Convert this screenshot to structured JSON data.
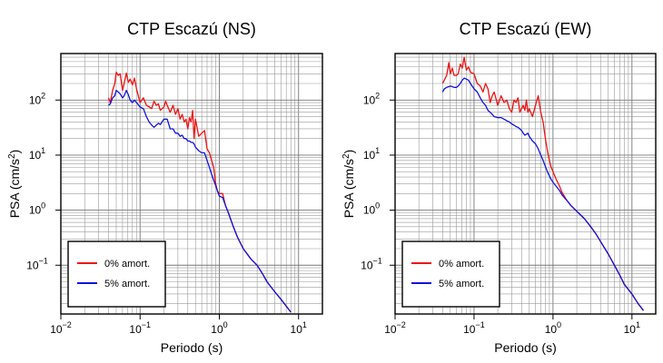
{
  "chart_data": [
    {
      "type": "line",
      "title": "CTP Escazú (NS)",
      "xlabel": "Periodo (s)",
      "ylabel_base": "PSA (cm/s",
      "ylabel_sup": "2",
      "ylabel_close": ")",
      "xscale": "log",
      "yscale": "log",
      "xlim": [
        0.01,
        20
      ],
      "ylim": [
        0.013,
        700
      ],
      "grid": true,
      "legend_position": "bottom-left",
      "x_ticks": [
        {
          "base": "10",
          "exp": "−2"
        },
        {
          "base": "10",
          "exp": "−1"
        },
        {
          "base": "10",
          "exp": "0"
        },
        {
          "base": "10",
          "exp": "1"
        }
      ],
      "y_ticks": [
        {
          "base": "10",
          "exp": "−1"
        },
        {
          "base": "10",
          "exp": "0"
        },
        {
          "base": "10",
          "exp": "1"
        },
        {
          "base": "10",
          "exp": "2"
        }
      ],
      "series": [
        {
          "name": "0% amort.",
          "color": "#ee1111",
          "x": [
            0.04,
            0.042,
            0.045,
            0.048,
            0.05,
            0.053,
            0.056,
            0.06,
            0.063,
            0.067,
            0.071,
            0.075,
            0.08,
            0.085,
            0.09,
            0.1,
            0.11,
            0.12,
            0.13,
            0.14,
            0.15,
            0.16,
            0.17,
            0.18,
            0.19,
            0.2,
            0.21,
            0.22,
            0.24,
            0.26,
            0.28,
            0.3,
            0.32,
            0.34,
            0.36,
            0.38,
            0.4,
            0.42,
            0.44,
            0.46,
            0.48,
            0.5,
            0.55,
            0.6,
            0.65,
            0.7,
            0.75,
            0.8,
            0.85,
            0.9,
            0.95,
            1.0,
            1.1,
            1.2,
            1.3,
            1.5,
            1.7,
            2.0,
            2.5,
            3.0,
            3.5,
            4.0,
            5.0,
            6.0,
            7.0,
            8.0
          ],
          "y": [
            110,
            90,
            150,
            200,
            320,
            280,
            300,
            150,
            200,
            310,
            210,
            240,
            190,
            250,
            160,
            90,
            110,
            80,
            75,
            70,
            95,
            80,
            85,
            65,
            70,
            75,
            95,
            80,
            60,
            80,
            55,
            70,
            45,
            55,
            40,
            45,
            30,
            48,
            40,
            65,
            20,
            45,
            22,
            25,
            28,
            13,
            11,
            8,
            6,
            3,
            2.2,
            2,
            2,
            1.2,
            0.9,
            0.5,
            0.32,
            0.2,
            0.13,
            0.1,
            0.07,
            0.05,
            0.033,
            0.024,
            0.018,
            0.014
          ]
        },
        {
          "name": "5% amort.",
          "color": "#1111dd",
          "x": [
            0.04,
            0.042,
            0.045,
            0.048,
            0.05,
            0.053,
            0.056,
            0.06,
            0.063,
            0.067,
            0.071,
            0.075,
            0.08,
            0.085,
            0.09,
            0.1,
            0.11,
            0.12,
            0.13,
            0.14,
            0.15,
            0.16,
            0.17,
            0.18,
            0.2,
            0.22,
            0.24,
            0.26,
            0.28,
            0.3,
            0.32,
            0.34,
            0.36,
            0.38,
            0.4,
            0.42,
            0.44,
            0.46,
            0.48,
            0.5,
            0.55,
            0.6,
            0.65,
            0.7,
            0.75,
            0.8,
            0.85,
            0.9,
            0.95,
            1.0,
            1.1,
            1.2,
            1.3,
            1.5,
            1.7,
            2.0,
            2.5,
            3.0,
            3.5,
            4.0,
            5.0,
            6.0,
            7.0,
            8.0
          ],
          "y": [
            80,
            85,
            110,
            120,
            150,
            140,
            130,
            110,
            120,
            150,
            125,
            100,
            90,
            100,
            90,
            75,
            70,
            50,
            40,
            35,
            32,
            35,
            38,
            36,
            45,
            45,
            30,
            30,
            25,
            25,
            22,
            23,
            20,
            20,
            18,
            18,
            17,
            17,
            16,
            14,
            12,
            11,
            11,
            8,
            6,
            4.5,
            3.5,
            2.8,
            2.2,
            1.8,
            1.7,
            1.2,
            0.9,
            0.5,
            0.32,
            0.2,
            0.13,
            0.1,
            0.07,
            0.05,
            0.033,
            0.024,
            0.018,
            0.014
          ]
        }
      ]
    },
    {
      "type": "line",
      "title": "CTP Escazú (EW)",
      "xlabel": "Periodo (s)",
      "ylabel_base": "PSA (cm/s",
      "ylabel_sup": "2",
      "ylabel_close": ")",
      "xscale": "log",
      "yscale": "log",
      "xlim": [
        0.01,
        20
      ],
      "ylim": [
        0.013,
        700
      ],
      "grid": true,
      "legend_position": "bottom-left",
      "x_ticks": [
        {
          "base": "10",
          "exp": "−2"
        },
        {
          "base": "10",
          "exp": "−1"
        },
        {
          "base": "10",
          "exp": "0"
        },
        {
          "base": "10",
          "exp": "1"
        }
      ],
      "y_ticks": [
        {
          "base": "10",
          "exp": "−1"
        },
        {
          "base": "10",
          "exp": "0"
        },
        {
          "base": "10",
          "exp": "1"
        },
        {
          "base": "10",
          "exp": "2"
        }
      ],
      "series": [
        {
          "name": "0% amort.",
          "color": "#ee1111",
          "x": [
            0.04,
            0.042,
            0.045,
            0.048,
            0.05,
            0.053,
            0.056,
            0.06,
            0.063,
            0.067,
            0.071,
            0.075,
            0.08,
            0.085,
            0.09,
            0.1,
            0.11,
            0.12,
            0.13,
            0.14,
            0.15,
            0.16,
            0.17,
            0.18,
            0.2,
            0.22,
            0.24,
            0.26,
            0.28,
            0.3,
            0.32,
            0.34,
            0.36,
            0.38,
            0.4,
            0.42,
            0.44,
            0.46,
            0.48,
            0.5,
            0.55,
            0.6,
            0.65,
            0.7,
            0.75,
            0.8,
            0.85,
            0.9,
            0.95,
            1.0,
            1.1,
            1.2,
            1.3,
            1.5,
            1.7,
            2.0,
            2.5,
            3.0,
            3.5,
            4.0,
            5.0,
            6.0,
            7.0,
            8.0,
            10.0,
            12.0,
            14.0
          ],
          "y": [
            200,
            230,
            280,
            480,
            300,
            380,
            280,
            280,
            300,
            450,
            380,
            600,
            350,
            400,
            320,
            300,
            200,
            180,
            140,
            200,
            160,
            90,
            120,
            140,
            80,
            120,
            90,
            100,
            70,
            60,
            100,
            90,
            110,
            60,
            70,
            80,
            65,
            100,
            60,
            70,
            50,
            80,
            120,
            60,
            40,
            20,
            12,
            8,
            6,
            5,
            3.6,
            2.8,
            2.1,
            1.5,
            1.2,
            0.95,
            0.7,
            0.5,
            0.37,
            0.27,
            0.16,
            0.1,
            0.066,
            0.045,
            0.03,
            0.02,
            0.015
          ]
        },
        {
          "name": "5% amort.",
          "color": "#1111dd",
          "x": [
            0.04,
            0.042,
            0.045,
            0.048,
            0.05,
            0.053,
            0.056,
            0.06,
            0.063,
            0.067,
            0.071,
            0.075,
            0.08,
            0.085,
            0.09,
            0.1,
            0.11,
            0.12,
            0.13,
            0.14,
            0.15,
            0.16,
            0.17,
            0.18,
            0.2,
            0.22,
            0.24,
            0.26,
            0.28,
            0.3,
            0.32,
            0.34,
            0.36,
            0.38,
            0.4,
            0.42,
            0.44,
            0.46,
            0.48,
            0.5,
            0.55,
            0.6,
            0.65,
            0.7,
            0.75,
            0.8,
            0.85,
            0.9,
            0.95,
            1.0,
            1.1,
            1.2,
            1.3,
            1.5,
            1.7,
            2.0,
            2.5,
            3.0,
            3.5,
            4.0,
            5.0,
            6.0,
            7.0,
            8.0,
            10.0,
            12.0,
            14.0
          ],
          "y": [
            140,
            160,
            170,
            175,
            180,
            175,
            170,
            170,
            180,
            200,
            230,
            250,
            240,
            230,
            200,
            160,
            140,
            110,
            90,
            80,
            65,
            60,
            55,
            50,
            48,
            48,
            45,
            42,
            40,
            37,
            35,
            33,
            32,
            30,
            28,
            25,
            23,
            24,
            25,
            22,
            18,
            16,
            13,
            10,
            8,
            6.2,
            5,
            4.2,
            3.6,
            3.2,
            2.7,
            2.3,
            1.9,
            1.5,
            1.2,
            0.95,
            0.7,
            0.5,
            0.37,
            0.27,
            0.16,
            0.1,
            0.066,
            0.045,
            0.03,
            0.02,
            0.015
          ]
        }
      ]
    }
  ]
}
